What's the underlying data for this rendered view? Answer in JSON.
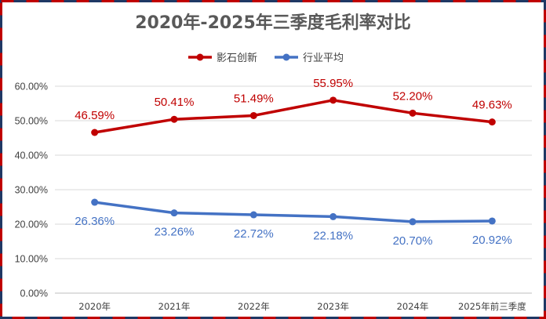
{
  "chart_data": {
    "type": "line",
    "title": "2020年-2025年三季度毛利率对比",
    "categories": [
      "2020年",
      "2021年",
      "2022年",
      "2023年",
      "2024年",
      "2025年前三季度"
    ],
    "series": [
      {
        "name": "影石创新",
        "color": "#c00000",
        "values": [
          46.59,
          50.41,
          51.49,
          55.95,
          52.2,
          49.63
        ],
        "labels": [
          "46.59%",
          "50.41%",
          "51.49%",
          "55.95%",
          "52.20%",
          "49.63%"
        ]
      },
      {
        "name": "行业平均",
        "color": "#4472c4",
        "values": [
          26.36,
          23.26,
          22.72,
          22.18,
          20.7,
          20.92
        ],
        "labels": [
          "26.36%",
          "23.26%",
          "22.72%",
          "22.18%",
          "20.70%",
          "20.92%"
        ]
      }
    ],
    "y_ticks": [
      "0.00%",
      "10.00%",
      "20.00%",
      "30.00%",
      "40.00%",
      "50.00%",
      "60.00%"
    ],
    "ylim": [
      0,
      60
    ],
    "grid": true,
    "legend_position": "top"
  },
  "colors": {
    "border_dash_a": "#c00000",
    "border_dash_b": "#1f3864",
    "gridline": "#d9d9d9"
  }
}
